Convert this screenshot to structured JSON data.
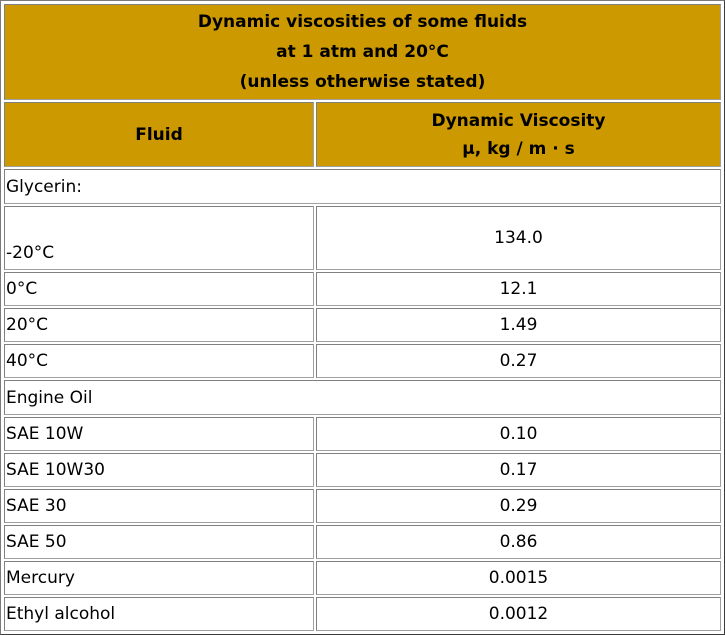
{
  "title": {
    "line1": "Dynamic viscosities of some fluids",
    "line2": "at 1 atm and 20°C",
    "line3": "(unless otherwise stated)"
  },
  "header": {
    "fluid": "Fluid",
    "viscosity_line1": "Dynamic Viscosity",
    "viscosity_line2": "μ, kg / m · s"
  },
  "colors": {
    "header_bg": "#cc9900",
    "border": "#808080"
  },
  "sections": {
    "glycerin": "Glycerin:",
    "engine_oil": "Engine Oil"
  },
  "rows": [
    {
      "fluid": "-20°C",
      "viscosity": "134.0"
    },
    {
      "fluid": "0°C",
      "viscosity": "12.1"
    },
    {
      "fluid": "20°C",
      "viscosity": "1.49"
    },
    {
      "fluid": "40°C",
      "viscosity": "0.27"
    },
    {
      "fluid": "SAE 10W",
      "viscosity": "0.10"
    },
    {
      "fluid": "SAE 10W30",
      "viscosity": "0.17"
    },
    {
      "fluid": "SAE 30",
      "viscosity": "0.29"
    },
    {
      "fluid": "SAE 50",
      "viscosity": "0.86"
    },
    {
      "fluid": "Mercury",
      "viscosity": "0.0015"
    },
    {
      "fluid": "Ethyl alcohol",
      "viscosity": "0.0012"
    }
  ]
}
